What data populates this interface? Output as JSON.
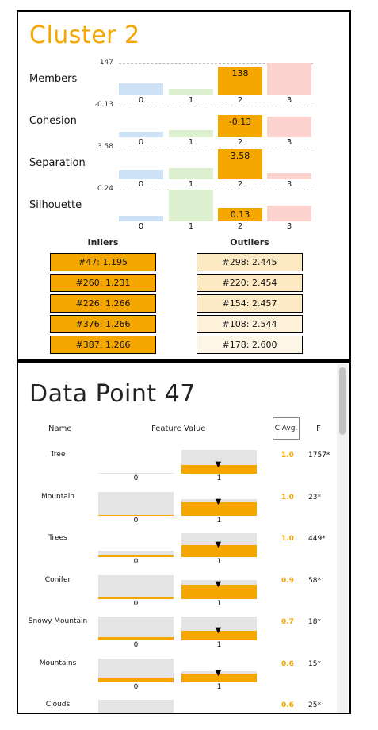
{
  "cluster": {
    "title": "Cluster 2",
    "colors": {
      "0": "#cde2f7",
      "1": "#dcefcf",
      "2": "#f5a700",
      "3": "#fdd3d0"
    },
    "categories": [
      "0",
      "1",
      "2",
      "3"
    ],
    "metrics": [
      {
        "name": "Members",
        "max_label": "147",
        "highlight_label": "138",
        "levels": [
          0.38,
          0.2,
          0.91,
          1.0
        ]
      },
      {
        "name": "Cohesion",
        "max_label": "-0.13",
        "highlight_label": "-0.13",
        "levels": [
          0.18,
          0.22,
          0.71,
          0.66
        ]
      },
      {
        "name": "Separation",
        "max_label": "3.58",
        "highlight_label": "3.58",
        "levels": [
          0.3,
          0.35,
          0.95,
          0.2
        ]
      },
      {
        "name": "Silhouette",
        "max_label": "0.24",
        "highlight_label": "0.13",
        "levels": [
          0.18,
          1.0,
          0.42,
          0.5
        ]
      }
    ],
    "inliers_header": "Inliers",
    "outliers_header": "Outliers",
    "inliers": [
      "#47: 1.195",
      "#260: 1.231",
      "#226: 1.266",
      "#376: 1.266",
      "#387: 1.266"
    ],
    "outliers": [
      "#298: 2.445",
      "#220: 2.454",
      "#154: 2.457",
      "#108: 2.544",
      "#178: 2.600"
    ],
    "outlier_colors": [
      "#fde9c2",
      "#fde9c2",
      "#fdebc7",
      "#fef2da",
      "#fef6e6"
    ]
  },
  "datapoint": {
    "title": "Data Point 47",
    "headers": {
      "name": "Name",
      "feature_value": "Feature Value",
      "cavg": "C.Avg.",
      "f": "F"
    },
    "ticks": [
      "0",
      "1"
    ],
    "features": [
      {
        "name": "Tree",
        "cavg": "1.0",
        "f": "1757*",
        "bg0": 0.03,
        "fill0": 0.0,
        "bg1": 1.0,
        "fill1": 0.35
      },
      {
        "name": "Mountain",
        "cavg": "1.0",
        "f": "23*",
        "bg0": 1.0,
        "fill0": 0.03,
        "bg1": 0.7,
        "fill1": 0.55
      },
      {
        "name": "Trees",
        "cavg": "1.0",
        "f": "449*",
        "bg0": 0.25,
        "fill0": 0.08,
        "bg1": 1.0,
        "fill1": 0.5
      },
      {
        "name": "Conifer",
        "cavg": "0.9",
        "f": "58*",
        "bg0": 1.0,
        "fill0": 0.05,
        "bg1": 0.8,
        "fill1": 0.6
      },
      {
        "name": "Snowy Mountain",
        "cavg": "0.7",
        "f": "18*",
        "bg0": 1.0,
        "fill0": 0.12,
        "bg1": 1.0,
        "fill1": 0.4
      },
      {
        "name": "Mountains",
        "cavg": "0.6",
        "f": "15*",
        "bg0": 1.0,
        "fill0": 0.2,
        "bg1": 0.45,
        "fill1": 0.35
      },
      {
        "name": "Clouds",
        "cavg": "0.6",
        "f": "25*",
        "bg0": 1.0,
        "fill0": 0.0,
        "bg1": 0.0,
        "fill1": 0.0
      }
    ]
  }
}
